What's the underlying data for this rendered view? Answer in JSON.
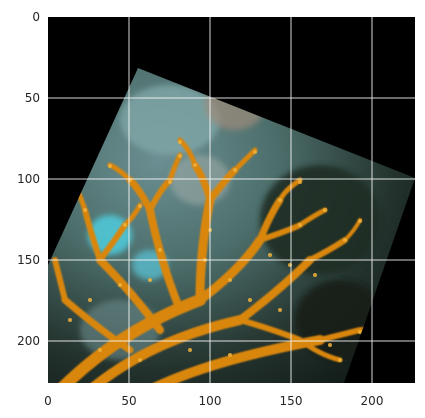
{
  "image_axes": {
    "xlim": [
      0,
      227
    ],
    "ylim": [
      227,
      0
    ],
    "x_ticks": [
      0,
      50,
      100,
      150,
      200
    ],
    "y_ticks": [
      0,
      50,
      100,
      150,
      200
    ],
    "x_tick_labels": [
      "0",
      "50",
      "100",
      "150",
      "200"
    ],
    "y_tick_labels": [
      "0",
      "50",
      "100",
      "150",
      "200"
    ],
    "grid": true,
    "grid_color": "#ffffff",
    "background_color": "#000000",
    "content": "rotated photo of orange branching coral on blurred blue-green reef background"
  },
  "colors": {
    "coral_orange": "#d9860f",
    "coral_highlight": "#f0b23a",
    "reef_teal": "#5a8f95",
    "reef_dark": "#1a2a24"
  }
}
